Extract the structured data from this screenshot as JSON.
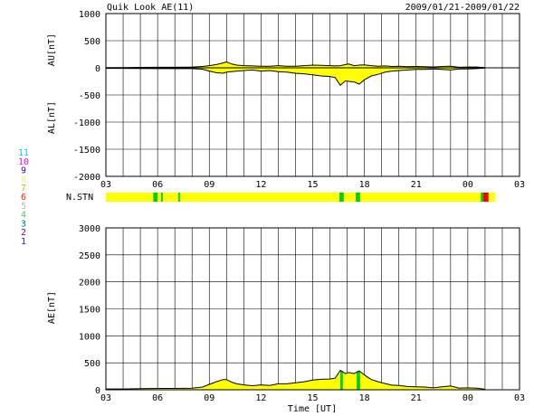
{
  "chart_data": [
    {
      "panel": "au_al",
      "type": "area",
      "title": "Quik Look AE(11)",
      "date_range": "2009/01/21-2009/01/22",
      "ylabel_upper": "AU[nT]",
      "ylabel_lower": "AL[nT]",
      "xlabel": "",
      "ylim": [
        -2000,
        1000
      ],
      "yticks": [
        "1000",
        "500",
        "0",
        "-500",
        "-1000",
        "-1500",
        "-2000"
      ],
      "xlim": [
        3,
        27
      ],
      "xticks": [
        "03",
        "06",
        "09",
        "12",
        "15",
        "18",
        "21",
        "00",
        "03"
      ],
      "grid": true,
      "fill_color": "#ffff00",
      "series": [
        {
          "key": "au",
          "x": [
            3.0,
            4.0,
            5.0,
            6.0,
            7.0,
            8.0,
            8.6,
            9.0,
            9.4,
            9.8,
            10.0,
            10.3,
            10.6,
            11.0,
            11.5,
            12.0,
            12.5,
            13.0,
            13.5,
            14.0,
            14.5,
            15.0,
            15.5,
            16.0,
            16.3,
            16.6,
            16.9,
            17.1,
            17.4,
            17.7,
            18.0,
            18.4,
            18.8,
            19.2,
            19.6,
            20.0,
            20.5,
            21.0,
            21.5,
            22.0,
            22.5,
            23.0,
            23.5,
            24.0,
            24.5,
            25.0
          ],
          "values": [
            5,
            5,
            8,
            10,
            10,
            15,
            25,
            40,
            60,
            90,
            110,
            70,
            50,
            40,
            35,
            30,
            30,
            40,
            30,
            30,
            40,
            50,
            45,
            40,
            35,
            40,
            60,
            70,
            40,
            50,
            55,
            40,
            30,
            35,
            25,
            30,
            20,
            25,
            20,
            15,
            25,
            30,
            10,
            15,
            15,
            5
          ]
        },
        {
          "key": "al",
          "x": [
            3.0,
            4.0,
            5.0,
            6.0,
            7.0,
            8.0,
            8.6,
            9.0,
            9.4,
            9.8,
            10.0,
            10.3,
            10.6,
            11.0,
            11.5,
            12.0,
            12.5,
            13.0,
            13.5,
            14.0,
            14.5,
            15.0,
            15.5,
            16.0,
            16.3,
            16.6,
            16.9,
            17.1,
            17.4,
            17.7,
            18.0,
            18.4,
            18.8,
            19.2,
            19.6,
            20.0,
            20.5,
            21.0,
            21.5,
            22.0,
            22.5,
            23.0,
            23.5,
            24.0,
            24.5,
            25.0
          ],
          "values": [
            -10,
            -10,
            -12,
            -15,
            -15,
            -15,
            -25,
            -60,
            -90,
            -100,
            -80,
            -70,
            -60,
            -50,
            -40,
            -60,
            -50,
            -70,
            -80,
            -100,
            -110,
            -130,
            -150,
            -160,
            -180,
            -320,
            -240,
            -250,
            -260,
            -300,
            -220,
            -150,
            -120,
            -80,
            -60,
            -50,
            -40,
            -30,
            -30,
            -20,
            -30,
            -40,
            -20,
            -20,
            -15,
            -5
          ]
        }
      ],
      "pre_fill_segment": {
        "x_end": 8.6
      }
    },
    {
      "panel": "nstn",
      "type": "heatmap",
      "label": "N.STN",
      "legend": [
        {
          "label": "11",
          "color": "#00d8d8"
        },
        {
          "label": "10",
          "color": "#ff00ff"
        },
        {
          "label": "9",
          "color": "#4000c0"
        },
        {
          "label": "8",
          "color": "#f0f080"
        },
        {
          "label": "7",
          "color": "#c0c000"
        },
        {
          "label": "6",
          "color": "#ff2020"
        },
        {
          "label": "5",
          "color": "#b8b8b8"
        },
        {
          "label": "4",
          "color": "#60c060"
        },
        {
          "label": "3",
          "color": "#008080"
        },
        {
          "label": "2",
          "color": "#8000a0"
        },
        {
          "label": "1",
          "color": "#2020c0"
        }
      ],
      "base_color": "#ffff00",
      "segments": [
        {
          "x0": 3.0,
          "x1": 25.6,
          "color": "#ffff00"
        },
        {
          "x0": 5.75,
          "x1": 6.0,
          "color": "#00d000"
        },
        {
          "x0": 6.2,
          "x1": 6.3,
          "color": "#00d000"
        },
        {
          "x0": 7.2,
          "x1": 7.3,
          "color": "#00d000"
        },
        {
          "x0": 16.55,
          "x1": 16.8,
          "color": "#00d000"
        },
        {
          "x0": 17.5,
          "x1": 17.75,
          "color": "#00d000"
        },
        {
          "x0": 24.75,
          "x1": 24.9,
          "color": "#00d000"
        },
        {
          "x0": 24.9,
          "x1": 25.2,
          "color": "#ff0000"
        }
      ]
    },
    {
      "panel": "ae",
      "type": "area",
      "ylabel": "AE[nT]",
      "xlabel": "Time [UT]",
      "ylim": [
        0,
        3000
      ],
      "yticks": [
        "3000",
        "2500",
        "2000",
        "1500",
        "1000",
        "500",
        "0"
      ],
      "xlim": [
        3,
        27
      ],
      "xticks": [
        "03",
        "06",
        "09",
        "12",
        "15",
        "18",
        "21",
        "00",
        "03"
      ],
      "grid": true,
      "fill_color": "#ffff00",
      "series": [
        {
          "key": "ae",
          "x": [
            3.0,
            4.0,
            5.0,
            6.0,
            7.0,
            8.0,
            8.6,
            9.0,
            9.4,
            9.8,
            10.0,
            10.3,
            10.6,
            11.0,
            11.5,
            12.0,
            12.5,
            13.0,
            13.5,
            14.0,
            14.5,
            15.0,
            15.5,
            16.0,
            16.3,
            16.6,
            16.9,
            17.1,
            17.4,
            17.7,
            18.0,
            18.4,
            18.8,
            19.2,
            19.6,
            20.0,
            20.5,
            21.0,
            21.5,
            22.0,
            22.5,
            23.0,
            23.5,
            24.0,
            24.5,
            25.0
          ],
          "values": [
            15,
            15,
            20,
            25,
            25,
            30,
            50,
            100,
            150,
            190,
            190,
            140,
            110,
            90,
            75,
            90,
            80,
            110,
            110,
            130,
            150,
            180,
            195,
            200,
            215,
            360,
            300,
            320,
            300,
            350,
            275,
            190,
            150,
            115,
            85,
            80,
            60,
            55,
            50,
            35,
            55,
            70,
            30,
            35,
            30,
            10
          ]
        }
      ],
      "green_bars": [
        {
          "x0": 16.6,
          "x1": 16.75
        },
        {
          "x0": 17.55,
          "x1": 17.75
        },
        {
          "x0": 24.75,
          "x1": 24.9
        }
      ],
      "red_bars": [
        {
          "x0": 24.9,
          "x1": 25.2
        }
      ]
    }
  ]
}
